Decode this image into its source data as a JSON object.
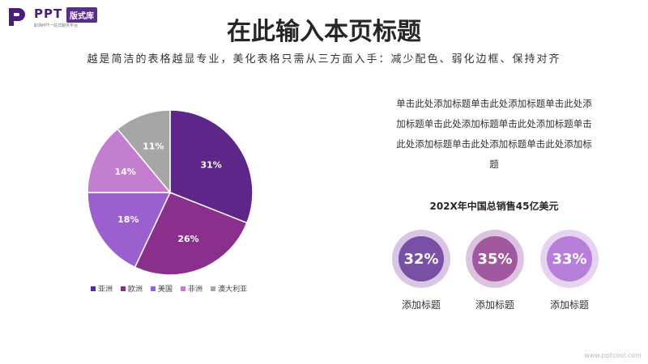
{
  "brand": {
    "name": "PPT",
    "badge": "版式库",
    "tagline": "职场PPT一站式服务平台"
  },
  "title": "在此输入本页标题",
  "subtitle": "越是简洁的表格越显专业，美化表格只需从三方面入手：减少配色、弱化边框、保持对齐",
  "description": "单击此处添加标题单击此处添加标题单击此处添加标题单击此处添加标题单击此处添加标题单击此处添加标题单击此处添加标题单击此处添加标题",
  "total_label": "202X年中国总销售45亿美元",
  "circles": [
    {
      "value": "32%",
      "label": "添加标题",
      "ring": "#d8c6e4",
      "fill": "#7a4fa6"
    },
    {
      "value": "35%",
      "label": "添加标题",
      "ring": "#dcc3e0",
      "fill": "#a0589e"
    },
    {
      "value": "33%",
      "label": "添加标题",
      "ring": "#e6d3f0",
      "fill": "#b77fd9"
    }
  ],
  "watermark": "www.pptcool.com",
  "chart_data": {
    "type": "pie",
    "categories": [
      "亚洲",
      "欧洲",
      "美国",
      "非洲",
      "澳大利亚"
    ],
    "values": [
      31,
      26,
      18,
      14,
      11
    ],
    "labels": [
      "31%",
      "26%",
      "18%",
      "14%",
      "11%"
    ],
    "colors": [
      "#5e2689",
      "#8b2f8d",
      "#9b5fd0",
      "#c47ed0",
      "#a6a6a6"
    ],
    "legend": "bottom"
  }
}
